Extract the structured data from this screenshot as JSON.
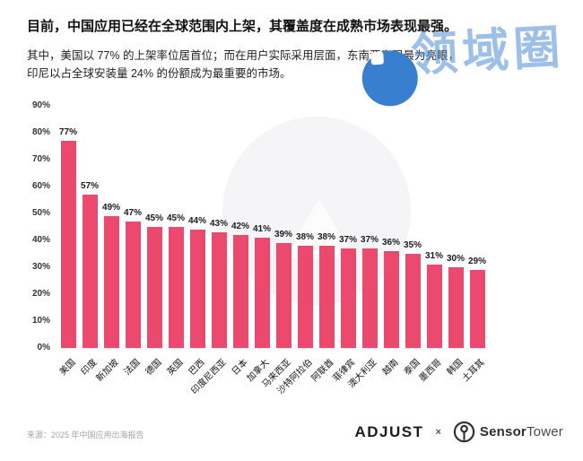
{
  "title": "目前，中国应用已经在全球范围内上架，其覆盖度在成熟市场表现最强。",
  "subtitle_line1": "其中，美国以 77% 的上架率位居首位；而在用户实际采用层面，东南亚表现最为亮眼，",
  "subtitle_line2": "印尼以占全球安装量 24% 的份额成为最重要的市场。",
  "watermark": {
    "text": "领域圈",
    "text_color": "rgba(77,141,216,0.55)",
    "circle_color": "#397FD0"
  },
  "chart_data": {
    "type": "bar",
    "title": "",
    "xlabel": "",
    "ylabel": "",
    "categories": [
      "美国",
      "印度",
      "新加坡",
      "法国",
      "德国",
      "英国",
      "巴西",
      "印度尼西亚",
      "日本",
      "加拿大",
      "马来西亚",
      "沙特阿拉伯",
      "阿联酋",
      "菲律宾",
      "澳大利亚",
      "越南",
      "泰国",
      "墨西哥",
      "韩国",
      "土耳其"
    ],
    "values": [
      77,
      57,
      49,
      47,
      45,
      45,
      44,
      43,
      42,
      41,
      39,
      38,
      38,
      37,
      37,
      36,
      35,
      31,
      30,
      29
    ],
    "value_labels": [
      "77%",
      "57%",
      "49%",
      "47%",
      "45%",
      "45%",
      "44%",
      "43%",
      "42%",
      "41%",
      "39%",
      "38%",
      "38%",
      "37%",
      "37%",
      "36%",
      "35%",
      "31%",
      "30%",
      "29%"
    ],
    "y_ticks": [
      "90%",
      "80%",
      "70%",
      "60%",
      "50%",
      "40%",
      "30%",
      "20%",
      "10%",
      "0%"
    ],
    "ylim": [
      0,
      90
    ],
    "bar_color": "#EB4A6E",
    "grid": false,
    "legend_position": "none"
  },
  "footer": {
    "source": "来源：2025 年中国应用出海报告",
    "adjust_label": "ADJUST",
    "separator": "×",
    "sensortower_bold": "Sensor",
    "sensortower_regular": "Tower"
  }
}
